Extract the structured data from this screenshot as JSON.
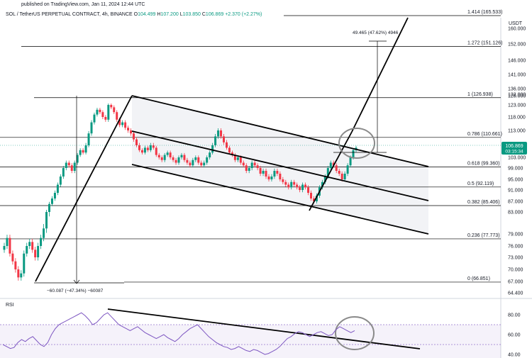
{
  "header": {
    "published": "published on TradingView.com, Jan 11, 2024 12:44 UTC",
    "symbol_name": "SOL / TetherUS PERPETUAL CONTRACT, 4h, BINANCE",
    "o_label": "O",
    "o_value": "104.499",
    "h_label": "H",
    "h_value": "107.200",
    "l_label": "L",
    "l_value": "103.850",
    "c_label": "C",
    "c_value": "106.869",
    "change": "+2.370 (+2.27%)"
  },
  "price_axis": {
    "unit": "USDT",
    "labels": [
      "160.000",
      "152.000",
      "146.000",
      "141.000",
      "136.000",
      "132.000",
      "128.000",
      "123.000",
      "118.000",
      "113.000",
      "108.000",
      "103.000",
      "99.000",
      "95.000",
      "91.000",
      "87.000",
      "83.000",
      "79.000",
      "76.000",
      "73.000",
      "70.000",
      "67.000",
      "64.400"
    ],
    "current_price": "106.869",
    "countdown": "03:15:34"
  },
  "rsi": {
    "title": "RSI",
    "labels": [
      "80.00",
      "60.00",
      "40.00"
    ]
  },
  "chart_data": {
    "type": "line",
    "subtype": "candlestick with fibonacci retracement and trend channel",
    "fib_levels": [
      {
        "ratio": "1.414",
        "value": 165.533,
        "label": "1.414 (165.533)"
      },
      {
        "ratio": "1.272",
        "value": 151.126,
        "label": "1.272 (151.126)"
      },
      {
        "ratio": "1",
        "value": 126.938,
        "label": "1 (126.938)"
      },
      {
        "ratio": "0.786",
        "value": 110.661,
        "label": "0.786 (110.661)"
      },
      {
        "ratio": "0.618",
        "value": 99.36,
        "label": "0.618 (99.360)"
      },
      {
        "ratio": "0.5",
        "value": 92.119,
        "label": "0.5 (92.119)"
      },
      {
        "ratio": "0.382",
        "value": 85.406,
        "label": "0.382 (85.406)"
      },
      {
        "ratio": "0.236",
        "value": 77.773,
        "label": "0.236 (77.773)"
      },
      {
        "ratio": "0",
        "value": 66.851,
        "label": "0 (66.851)"
      }
    ],
    "measures": [
      {
        "label": "49.465 (47.62%) 4946"
      },
      {
        "label": "−60.087 (−47.34%) −60087"
      }
    ],
    "close_series": [
      76,
      78,
      74,
      72,
      70,
      68,
      69,
      74,
      76,
      77,
      75,
      73,
      76,
      78,
      80,
      83,
      86,
      88,
      90,
      93,
      96,
      99,
      101,
      100,
      98,
      101,
      104,
      106,
      105,
      108,
      112,
      116,
      119,
      121,
      120,
      118,
      117,
      123,
      122,
      120,
      117,
      115,
      116,
      114,
      113,
      112,
      110,
      108,
      106,
      105,
      107,
      106,
      108,
      107,
      104,
      103,
      102,
      104,
      105,
      103,
      102,
      101,
      103,
      104,
      102,
      101,
      100,
      102,
      103,
      101,
      100,
      101,
      103,
      105,
      108,
      111,
      113,
      111,
      109,
      107,
      105,
      104,
      102,
      103,
      101,
      100,
      98,
      99,
      101,
      100,
      99,
      97,
      98,
      96,
      95,
      96,
      98,
      97,
      95,
      94,
      93,
      92,
      94,
      93,
      92,
      91,
      93,
      92,
      90,
      88,
      87,
      89,
      92,
      94,
      96,
      99,
      101,
      100,
      98,
      97,
      95,
      97,
      100,
      103,
      106,
      107
    ],
    "rsi_values": [
      50,
      48,
      46,
      47,
      52,
      55,
      53,
      56,
      58,
      54,
      50,
      48,
      52,
      60,
      66,
      70,
      72,
      74,
      76,
      78,
      80,
      82,
      79,
      75,
      70,
      72,
      76,
      80,
      82,
      78,
      74,
      70,
      68,
      66,
      64,
      66,
      68,
      65,
      62,
      60,
      58,
      56,
      58,
      60,
      57,
      55,
      53,
      56,
      60,
      63,
      66,
      68,
      70,
      66,
      62,
      58,
      55,
      52,
      50,
      48,
      47,
      45,
      46,
      48,
      46,
      44,
      43,
      45,
      44,
      42,
      40,
      41,
      43,
      45,
      48,
      52,
      56,
      58,
      61,
      63,
      62,
      60,
      58,
      60,
      62,
      63,
      61,
      59,
      60,
      65,
      68,
      66,
      64,
      62,
      64
    ]
  }
}
